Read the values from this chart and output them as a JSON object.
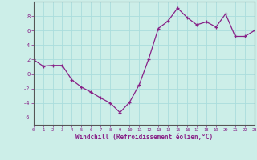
{
  "hours": [
    0,
    1,
    2,
    3,
    4,
    5,
    6,
    7,
    8,
    9,
    10,
    11,
    12,
    13,
    14,
    15,
    16,
    17,
    18,
    19,
    20,
    21,
    22,
    23
  ],
  "windchill": [
    2.0,
    1.1,
    1.2,
    1.2,
    -0.8,
    -1.8,
    -2.5,
    -3.3,
    -4.0,
    -5.3,
    -3.9,
    -1.5,
    2.1,
    6.3,
    7.3,
    9.1,
    7.8,
    6.8,
    7.2,
    6.5,
    8.3,
    5.2,
    5.2,
    6.0
  ],
  "xlim": [
    0,
    23
  ],
  "ylim": [
    -7,
    10
  ],
  "yticks": [
    -6,
    -4,
    -2,
    0,
    2,
    4,
    6,
    8
  ],
  "xtick_labels": [
    "0",
    "1",
    "2",
    "3",
    "4",
    "5",
    "6",
    "7",
    "8",
    "9",
    "10",
    "11",
    "12",
    "13",
    "14",
    "15",
    "16",
    "17",
    "18",
    "19",
    "20",
    "21",
    "22",
    "23"
  ],
  "xlabel": "Windchill (Refroidissement éolien,°C)",
  "line_color": "#882288",
  "marker": "+",
  "bg_color": "#cceee8",
  "grid_color": "#aadddd",
  "axis_color": "#555555"
}
